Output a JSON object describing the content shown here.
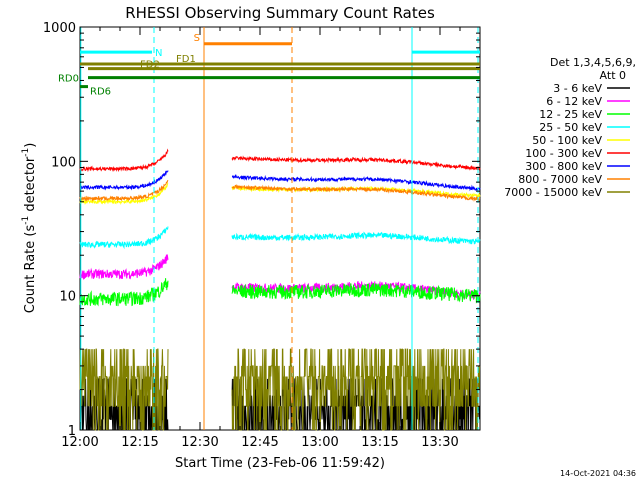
{
  "chart_data": {
    "type": "line",
    "title": "RHESSI Observing Summary Count Rates",
    "xlabel": "Start Time (23-Feb-06 11:59:42)",
    "ylabel_main": "Count Rate (s",
    "ylabel_sup1": "-1",
    "ylabel_mid": " detector",
    "ylabel_sup2": "-1",
    "ylabel_end": ")",
    "yscale": "log",
    "ylim": [
      1,
      1000
    ],
    "xlim_minutes": [
      0,
      100
    ],
    "x_tick_minutes": [
      0,
      15,
      30,
      45,
      60,
      75,
      90
    ],
    "x_tick_labels": [
      "12:00",
      "12:15",
      "12:30",
      "12:45",
      "13:00",
      "13:15",
      "13:30"
    ],
    "y_tick_values": [
      1,
      10,
      100,
      1000
    ],
    "y_tick_labels": [
      "1",
      "10",
      "100",
      "1000"
    ],
    "legend_header": [
      "Det 1,3,4,5,6,9,",
      "Att 0"
    ],
    "timestamp": "14-Oct-2021 04:36",
    "gaps_minutes": [
      [
        22,
        38
      ]
    ],
    "series": [
      {
        "name": "3 - 6 keV",
        "color": "#000000",
        "pre": 1.3,
        "mid": 1.3,
        "post": 1.3,
        "end": 1.3,
        "noise": 0.4
      },
      {
        "name": "6 - 12 keV",
        "color": "#ff00ff",
        "pre": 14.5,
        "mid": 14.5,
        "post": 12,
        "end": 10,
        "noise": 0.08
      },
      {
        "name": "12 - 25 keV",
        "color": "#00ff00",
        "pre": 9.5,
        "mid": 10,
        "post": 11,
        "end": 10,
        "noise": 0.12
      },
      {
        "name": "25 - 50 keV",
        "color": "#00ffff",
        "pre": 24,
        "mid": 26,
        "post": 28,
        "end": 25,
        "noise": 0.05
      },
      {
        "name": "50 - 100 keV",
        "color": "#ffff00",
        "pre": 50,
        "mid": 52,
        "post": 65,
        "end": 55,
        "noise": 0.03
      },
      {
        "name": "100 - 300 keV",
        "color": "#ff0000",
        "pre": 88,
        "mid": 90,
        "post": 110,
        "end": 88,
        "noise": 0.03
      },
      {
        "name": "300 - 800 keV",
        "color": "#0000ff",
        "pre": 64,
        "mid": 66,
        "post": 80,
        "end": 62,
        "noise": 0.03
      },
      {
        "name": "800 - 7000 keV",
        "color": "#ff8000",
        "pre": 53,
        "mid": 54,
        "post": 68,
        "end": 52,
        "noise": 0.03
      },
      {
        "name": "7000 - 15000 keV",
        "color": "#808000",
        "pre": 2.5,
        "mid": 2.5,
        "post": 2.7,
        "end": 2.5,
        "noise": 0.5
      }
    ],
    "flags": [
      {
        "label": "N",
        "color": "#00ffff",
        "y": 650,
        "segments": [
          [
            0,
            18
          ],
          [
            83,
            100
          ]
        ]
      },
      {
        "label": "S",
        "color": "#ff8000",
        "y": 750,
        "segments": [
          [
            31,
            53
          ]
        ]
      },
      {
        "label": "FD1",
        "color": "#808000",
        "y": 530,
        "segments": [
          [
            0,
            100
          ]
        ]
      },
      {
        "label": "FD2",
        "color": "#808000",
        "y": 490,
        "segments": [
          [
            2,
            100
          ]
        ]
      },
      {
        "label": "RD0",
        "color": "#008000",
        "y": 420,
        "segments": [
          [
            2,
            100
          ]
        ]
      },
      {
        "label": "RD6",
        "color": "#008000",
        "y": 360,
        "segments": [
          [
            0,
            2
          ]
        ]
      }
    ],
    "vlines": [
      {
        "x": 0.2,
        "color": "#00ffff",
        "style": "solid"
      },
      {
        "x": 18.5,
        "color": "#00ffff",
        "style": "dashed"
      },
      {
        "x": 31.0,
        "color": "#ff8000",
        "style": "solid"
      },
      {
        "x": 53.0,
        "color": "#ff8000",
        "style": "dashed"
      },
      {
        "x": 83.0,
        "color": "#00ffff",
        "style": "solid"
      },
      {
        "x": 99.5,
        "color": "#00ffff",
        "style": "dashed"
      }
    ]
  }
}
